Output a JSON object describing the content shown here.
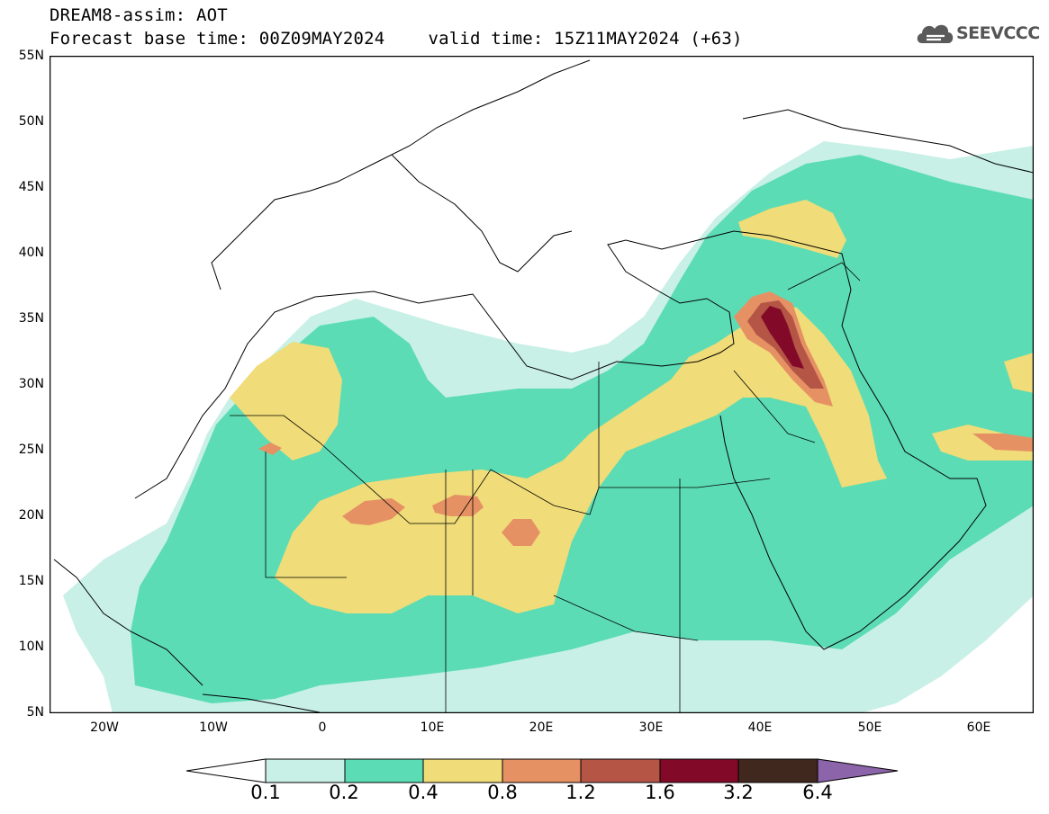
{
  "header": {
    "title": "DREAM8-assim: AOT",
    "base_time": "Forecast base time: 00Z09MAY2024",
    "valid_time": "valid time: 15Z11MAY2024 (+63)"
  },
  "logo": {
    "text": "SEEVCCC",
    "icon": "cloud-icon"
  },
  "map": {
    "lat_labels": [
      "55N",
      "50N",
      "45N",
      "40N",
      "35N",
      "30N",
      "25N",
      "20N",
      "15N",
      "10N",
      "5N"
    ],
    "lon_labels": [
      "20W",
      "10W",
      "0",
      "10E",
      "20E",
      "30E",
      "40E",
      "50E",
      "60E"
    ],
    "lat_range": [
      5,
      55
    ],
    "lon_range": [
      -25,
      65
    ],
    "colors": {
      "c01": "#c8f0e6",
      "c02": "#5cdcb4",
      "c04": "#f0dc78",
      "c08": "#e69164",
      "c12": "#b45546",
      "c16": "#820a28",
      "c32": "#41281e",
      "c64": "#8c64aa"
    }
  },
  "colorbar": {
    "labels": [
      "0.1",
      "0.2",
      "0.4",
      "0.8",
      "1.2",
      "1.6",
      "3.2",
      "6.4"
    ],
    "colors": [
      "#ffffff",
      "#c8f0e6",
      "#5cdcb4",
      "#f0dc78",
      "#e69164",
      "#b45546",
      "#820a28",
      "#41281e",
      "#8c64aa"
    ]
  }
}
